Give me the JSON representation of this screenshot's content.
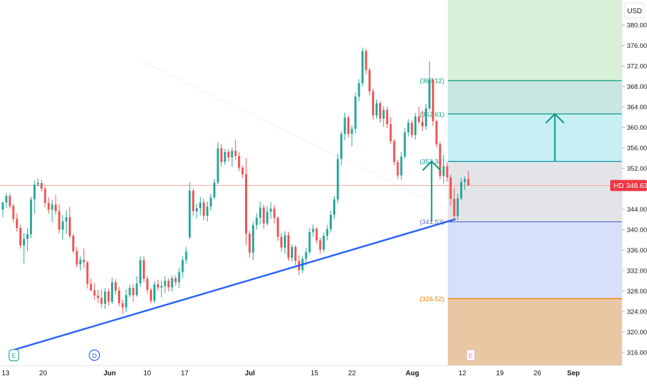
{
  "symbol": "HD",
  "currency": "USD",
  "last_price": "348.63",
  "colors": {
    "up": "#26a69a",
    "down": "#ef5350",
    "trendline": "#2962ff",
    "arrow": "#089981",
    "price_tag": "#f23645",
    "price_line": "#f7a1a1",
    "fib_top_fill": "#d8efd8",
    "fib_band1_fill": "#c9e6e2",
    "fib_band2_fill": "#c7eff4",
    "fib_band3_fill": "#e3e4e8",
    "fib_band4_fill": "#d6e0fa",
    "fib_bottom_fill": "#e8c8a3"
  },
  "markers": [
    {
      "label": "E",
      "kind": "earnings"
    },
    {
      "label": "D",
      "kind": "dividend"
    },
    {
      "label": "E",
      "kind": "earnings-upcoming"
    }
  ],
  "chart_data": {
    "type": "candlestick",
    "y_ticks": [
      "380.00",
      "376.00",
      "372.00",
      "368.00",
      "364.00",
      "360.00",
      "356.00",
      "352.00",
      "348.00",
      "344.00",
      "340.00",
      "336.00",
      "332.00",
      "328.00",
      "324.00",
      "320.00",
      "316.00"
    ],
    "ylim": [
      314.5,
      381.5
    ],
    "x_ticks": [
      "13",
      "20",
      "Jun",
      "10",
      "17",
      "Jul",
      "15",
      "22",
      "Aug",
      "12",
      "19",
      "26",
      "Sep"
    ],
    "fib_levels": [
      {
        "label": "(369.12)",
        "value": 369.12,
        "color": "#089981"
      },
      {
        "label": "(362.61)",
        "value": 362.61,
        "color": "#089981"
      },
      {
        "label": "(353.34)",
        "value": 353.34,
        "color": "#0097a7"
      },
      {
        "label": "(341.53)",
        "value": 341.53,
        "color": "#5c6bc0"
      },
      {
        "label": "(326.52)",
        "value": 326.52,
        "color": "#f57c00"
      }
    ],
    "trendline": [
      [
        0,
        316.5
      ],
      [
        127,
        342
      ]
    ],
    "arrows": [
      {
        "x": 109,
        "from": 341.53,
        "to": 353.34
      },
      {
        "x": 129,
        "from": 353.34,
        "to": 362.61
      }
    ],
    "candles": [
      [
        343.9,
        345.5,
        342.5,
        345.3
      ],
      [
        345.3,
        347.2,
        344.2,
        346.6
      ],
      [
        346.6,
        347.1,
        344.1,
        344.6
      ],
      [
        344.6,
        345.1,
        341.4,
        342.1
      ],
      [
        342.1,
        343.2,
        339.6,
        340.3
      ],
      [
        340.3,
        340.9,
        336.3,
        336.9
      ],
      [
        336.9,
        339.3,
        333.4,
        338.2
      ],
      [
        338.2,
        340.3,
        335.8,
        339.1
      ],
      [
        339.1,
        346.4,
        338.3,
        345.9
      ],
      [
        345.9,
        349.6,
        343.1,
        348.8
      ],
      [
        348.8,
        350.0,
        348.4,
        349.1
      ],
      [
        349.1,
        349.7,
        347.4,
        348.0
      ],
      [
        348.0,
        348.4,
        344.4,
        345.2
      ],
      [
        345.2,
        346.3,
        343.1,
        343.9
      ],
      [
        343.9,
        345.8,
        341.4,
        344.9
      ],
      [
        344.9,
        346.7,
        342.9,
        343.6
      ],
      [
        343.6,
        345.0,
        339.3,
        340.0
      ],
      [
        340.0,
        342.8,
        338.0,
        341.6
      ],
      [
        341.6,
        343.8,
        339.2,
        342.4
      ],
      [
        342.4,
        344.4,
        338.3,
        338.8
      ],
      [
        338.8,
        339.2,
        335.4,
        335.8
      ],
      [
        335.8,
        336.6,
        332.6,
        333.2
      ],
      [
        333.2,
        334.8,
        332.0,
        334.1
      ],
      [
        334.1,
        336.3,
        332.5,
        333.6
      ],
      [
        333.6,
        333.9,
        328.5,
        329.4
      ],
      [
        329.4,
        330.4,
        327.9,
        328.1
      ],
      [
        328.1,
        329.6,
        326.3,
        327.1
      ],
      [
        327.1,
        328.2,
        325.7,
        326.6
      ],
      [
        326.6,
        328.3,
        324.8,
        325.5
      ],
      [
        325.5,
        328.6,
        324.5,
        327.9
      ],
      [
        327.9,
        328.5,
        325.1,
        325.9
      ],
      [
        325.9,
        330.6,
        325.5,
        329.7
      ],
      [
        329.7,
        330.3,
        327.4,
        328.1
      ],
      [
        328.1,
        328.8,
        325.0,
        325.6
      ],
      [
        325.6,
        326.3,
        323.5,
        324.8
      ],
      [
        324.8,
        328.3,
        323.9,
        327.2
      ],
      [
        327.2,
        329.2,
        326.8,
        328.6
      ],
      [
        328.6,
        329.3,
        325.9,
        327.2
      ],
      [
        327.2,
        330.9,
        326.9,
        329.5
      ],
      [
        329.5,
        334.8,
        328.8,
        334.0
      ],
      [
        334.0,
        334.8,
        329.7,
        330.4
      ],
      [
        330.4,
        330.9,
        327.5,
        328.2
      ],
      [
        328.2,
        328.6,
        325.6,
        326.1
      ],
      [
        326.1,
        329.9,
        325.7,
        329.3
      ],
      [
        329.3,
        330.2,
        328.1,
        328.7
      ],
      [
        328.7,
        330.0,
        326.8,
        329.0
      ],
      [
        329.0,
        330.9,
        327.6,
        330.0
      ],
      [
        330.0,
        330.5,
        327.9,
        328.7
      ],
      [
        328.7,
        331.0,
        327.9,
        330.5
      ],
      [
        330.5,
        331.0,
        329.0,
        329.7
      ],
      [
        329.7,
        332.6,
        328.6,
        331.7
      ],
      [
        331.7,
        334.9,
        330.6,
        334.1
      ],
      [
        334.1,
        336.6,
        333.3,
        335.7
      ],
      [
        338.5,
        349.3,
        338.1,
        347.6
      ],
      [
        347.6,
        348.0,
        342.7,
        343.6
      ],
      [
        343.6,
        345.1,
        342.2,
        344.2
      ],
      [
        344.2,
        346.4,
        342.8,
        345.3
      ],
      [
        345.3,
        346.0,
        341.8,
        342.7
      ],
      [
        342.7,
        345.5,
        341.6,
        344.5
      ],
      [
        344.5,
        347.0,
        343.7,
        346.3
      ],
      [
        346.3,
        349.9,
        345.9,
        349.2
      ],
      [
        349.2,
        357.1,
        348.8,
        355.9
      ],
      [
        355.9,
        356.7,
        352.3,
        353.2
      ],
      [
        353.2,
        355.8,
        352.6,
        355.2
      ],
      [
        355.2,
        355.7,
        353.3,
        354.1
      ],
      [
        354.1,
        356.0,
        352.3,
        355.4
      ],
      [
        355.4,
        357.6,
        353.6,
        354.4
      ],
      [
        354.4,
        355.1,
        351.4,
        352.1
      ],
      [
        352.1,
        352.5,
        350.1,
        350.8
      ],
      [
        350.8,
        354.0,
        336.9,
        339.2
      ],
      [
        339.2,
        339.7,
        334.5,
        335.5
      ],
      [
        335.5,
        341.6,
        334.0,
        340.9
      ],
      [
        340.9,
        343.2,
        340.0,
        342.3
      ],
      [
        342.3,
        345.5,
        341.0,
        344.3
      ],
      [
        344.3,
        344.9,
        340.1,
        341.2
      ],
      [
        341.2,
        344.6,
        340.8,
        343.5
      ],
      [
        343.5,
        345.3,
        342.1,
        344.1
      ],
      [
        344.1,
        344.8,
        341.2,
        342.3
      ],
      [
        342.3,
        342.6,
        337.8,
        338.6
      ],
      [
        338.6,
        339.3,
        335.7,
        336.5
      ],
      [
        336.5,
        339.7,
        335.3,
        338.9
      ],
      [
        338.9,
        339.6,
        333.9,
        334.5
      ],
      [
        334.5,
        337.1,
        333.7,
        336.6
      ],
      [
        336.6,
        337.0,
        333.1,
        333.9
      ],
      [
        333.9,
        335.0,
        331.1,
        332.1
      ],
      [
        332.1,
        334.9,
        331.5,
        334.3
      ],
      [
        334.3,
        336.4,
        332.9,
        335.6
      ],
      [
        335.6,
        340.3,
        335.2,
        339.5
      ],
      [
        339.5,
        341.0,
        338.6,
        340.2
      ],
      [
        340.2,
        340.5,
        337.2,
        337.9
      ],
      [
        337.9,
        338.4,
        335.3,
        336.1
      ],
      [
        336.1,
        339.5,
        335.6,
        338.8
      ],
      [
        338.8,
        340.9,
        337.9,
        340.1
      ],
      [
        340.1,
        343.7,
        339.4,
        342.9
      ],
      [
        342.9,
        346.5,
        342.0,
        345.9
      ],
      [
        345.9,
        354.8,
        345.2,
        353.8
      ],
      [
        353.8,
        359.3,
        352.6,
        358.7
      ],
      [
        358.7,
        362.9,
        357.5,
        361.9
      ],
      [
        361.9,
        362.3,
        358.0,
        358.7
      ],
      [
        358.7,
        360.4,
        356.3,
        359.7
      ],
      [
        359.7,
        366.8,
        358.8,
        366.0
      ],
      [
        366.0,
        369.4,
        365.1,
        368.6
      ],
      [
        368.6,
        375.6,
        368.0,
        374.9
      ],
      [
        374.9,
        375.3,
        370.4,
        371.2
      ],
      [
        371.2,
        371.6,
        366.2,
        367.0
      ],
      [
        367.0,
        367.6,
        361.5,
        362.3
      ],
      [
        362.3,
        365.4,
        361.7,
        364.7
      ],
      [
        364.7,
        365.1,
        360.9,
        361.7
      ],
      [
        361.7,
        364.1,
        360.1,
        363.4
      ],
      [
        363.4,
        364.0,
        359.8,
        360.6
      ],
      [
        360.6,
        362.0,
        356.7,
        357.3
      ],
      [
        357.3,
        357.7,
        352.6,
        353.2
      ],
      [
        353.2,
        353.7,
        349.9,
        350.6
      ],
      [
        350.6,
        355.2,
        349.8,
        354.3
      ],
      [
        354.3,
        359.8,
        353.9,
        359.0
      ],
      [
        359.0,
        361.6,
        358.2,
        360.9
      ],
      [
        360.9,
        361.4,
        357.9,
        358.5
      ],
      [
        358.5,
        362.8,
        357.6,
        362.1
      ],
      [
        362.1,
        364.0,
        360.7,
        361.1
      ],
      [
        361.1,
        363.2,
        359.3,
        360.2
      ],
      [
        360.2,
        364.6,
        359.5,
        363.7
      ],
      [
        363.7,
        372.9,
        363.3,
        369.3
      ],
      [
        369.3,
        369.7,
        360.3,
        361.2
      ],
      [
        361.2,
        361.5,
        356.0,
        356.7
      ],
      [
        356.7,
        357.2,
        349.8,
        350.5
      ],
      [
        350.5,
        354.6,
        349.0,
        352.4
      ],
      [
        352.4,
        353.1,
        349.4,
        350.2
      ],
      [
        350.2,
        350.7,
        344.7,
        346.0
      ],
      [
        346.0,
        348.1,
        342.0,
        342.7
      ],
      [
        342.7,
        347.0,
        341.8,
        346.1
      ],
      [
        346.1,
        350.1,
        345.7,
        349.3
      ],
      [
        349.3,
        350.4,
        347.7,
        349.9
      ],
      [
        349.9,
        351.4,
        348.7,
        348.63
      ]
    ]
  }
}
